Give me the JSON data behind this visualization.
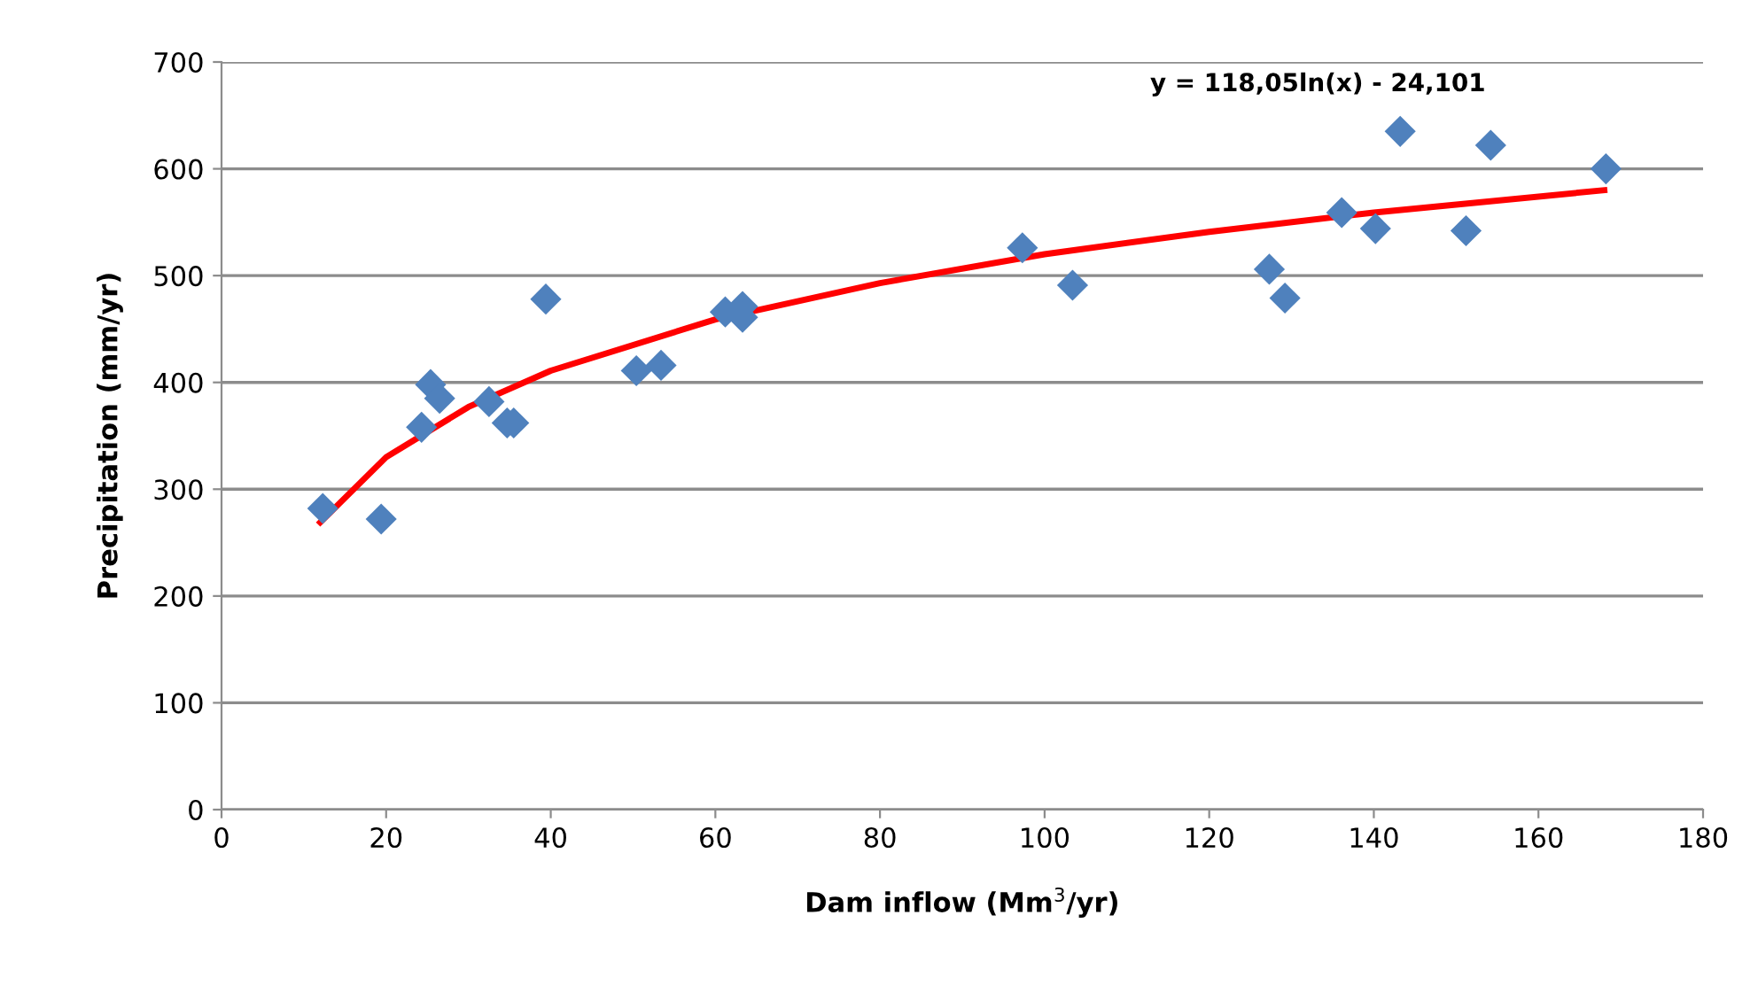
{
  "chart_data": {
    "type": "scatter",
    "xlabel": "Dam inflow (Mm$^{3}$/yr)",
    "ylabel": "Precipitation (mm/yr)",
    "annotations": [
      "y = 118,05ln(x) - 24,101"
    ],
    "series": [
      {
        "color": "#4f81bd",
        "marker": "diamond",
        "x": [
          12.3,
          19.4,
          24.3,
          25.4,
          26.5,
          32.5,
          34.7,
          35.5,
          39.4,
          50.4,
          53.4,
          61.2,
          63.3,
          63.3,
          97.3,
          103.4,
          127.3,
          129.2,
          136.1,
          140.2,
          143.2,
          151.2,
          154.2,
          168.2
        ],
        "values": [
          282,
          272,
          358,
          398,
          385,
          382,
          362,
          362,
          478,
          411,
          416,
          466,
          471,
          461,
          526,
          491,
          506,
          479,
          559,
          544,
          635,
          542,
          622,
          600
        ]
      },
      {
        "type": "line",
        "color": "#ff0000",
        "marker": "none",
        "line_style": "solid",
        "x": [
          12,
          20,
          30,
          40,
          60,
          80,
          100,
          120,
          140,
          168
        ],
        "values": [
          269,
          330,
          377,
          411,
          459,
          493,
          520,
          541,
          559,
          580
        ]
      }
    ],
    "xlim": [
      0,
      180
    ],
    "xticks": [
      0,
      20,
      40,
      60,
      80,
      100,
      120,
      140,
      160,
      180
    ],
    "ylim": [
      0,
      700
    ],
    "yticks": [
      0,
      100,
      200,
      300,
      400,
      500,
      600,
      700
    ],
    "grid": "y",
    "legend": false
  }
}
